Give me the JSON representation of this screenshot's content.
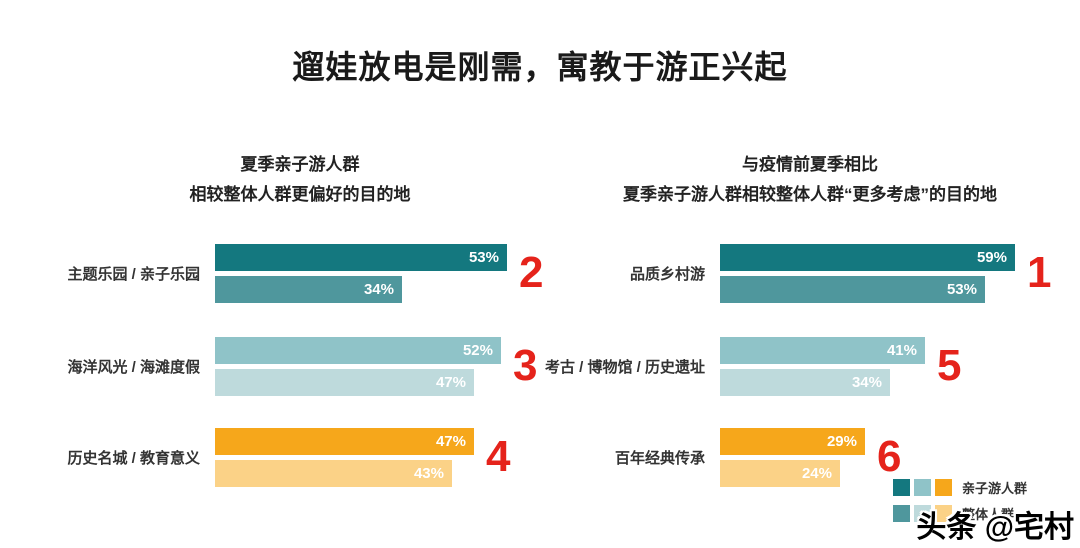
{
  "title": "遛娃放电是刚需，寓教于游正兴起",
  "accent_red": "#e5231b",
  "chart_data": [
    {
      "type": "bar",
      "title_line1": "夏季亲子游人群",
      "title_line2": "相较整体人群更偏好的目的地",
      "categories": [
        "主题乐园 / 亲子乐园",
        "海洋风光 / 海滩度假",
        "历史名城 / 教育意义"
      ],
      "series": [
        {
          "name": "亲子游人群",
          "values": [
            53,
            52,
            47
          ]
        },
        {
          "name": "整体人群",
          "values": [
            34,
            47,
            43
          ]
        }
      ],
      "value_labels": [
        [
          "53%",
          "34%"
        ],
        [
          "52%",
          "47%"
        ],
        [
          "47%",
          "43%"
        ]
      ],
      "rank_annotations": [
        "2",
        "3",
        "4"
      ],
      "bar_colors_top": [
        "#14787f",
        "#8fc3c8",
        "#f6a71b"
      ],
      "bar_colors_bottom": [
        "#4f979d",
        "#bedadc",
        "#fbd287"
      ],
      "xlim": [
        0,
        60
      ],
      "grid": false,
      "legend_position": "bottom-right"
    },
    {
      "type": "bar",
      "title_line1": "与疫情前夏季相比",
      "title_line2": "夏季亲子游人群相较整体人群“更多考虑”的目的地",
      "categories": [
        "品质乡村游",
        "考古 / 博物馆 / 历史遗址",
        "百年经典传承"
      ],
      "series": [
        {
          "name": "亲子游人群",
          "values": [
            59,
            41,
            29
          ]
        },
        {
          "name": "整体人群",
          "values": [
            53,
            34,
            24
          ]
        }
      ],
      "value_labels": [
        [
          "59%",
          "53%"
        ],
        [
          "41%",
          "34%"
        ],
        [
          "29%",
          "24%"
        ]
      ],
      "rank_annotations": [
        "1",
        "5",
        "6"
      ],
      "bar_colors_top": [
        "#14787f",
        "#8fc3c8",
        "#f6a71b"
      ],
      "bar_colors_bottom": [
        "#4f979d",
        "#bedadc",
        "#fbd287"
      ],
      "xlim": [
        0,
        60
      ],
      "grid": false,
      "legend_position": "bottom-right"
    }
  ],
  "legend": {
    "rows": [
      {
        "label": "亲子游人群",
        "colors": [
          "#14787f",
          "#8fc3c8",
          "#f6a71b"
        ]
      },
      {
        "label": "整体人群",
        "colors": [
          "#4f979d",
          "#bedadc",
          "#fbd287"
        ]
      }
    ]
  },
  "watermark": "头条 @宅村"
}
